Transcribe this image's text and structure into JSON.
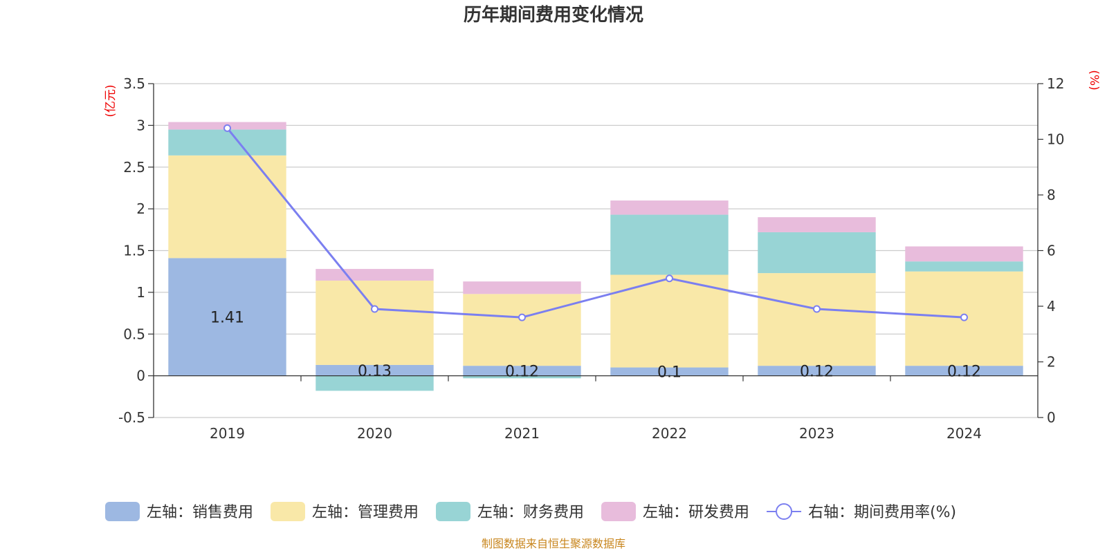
{
  "title": "历年期间费用变化情况",
  "source": "制图数据来自恒生聚源数据库",
  "chart_data": {
    "type": "bar",
    "stacked": true,
    "categories": [
      "2019",
      "2020",
      "2021",
      "2022",
      "2023",
      "2024"
    ],
    "left_axis": {
      "unit": "(亿元)",
      "min": -0.5,
      "max": 3.5,
      "ticks": [
        -0.5,
        0,
        0.5,
        1,
        1.5,
        2,
        2.5,
        3,
        3.5
      ]
    },
    "right_axis": {
      "unit": "(%)",
      "min": 0,
      "max": 12,
      "ticks": [
        0,
        2,
        4,
        6,
        8,
        10,
        12
      ]
    },
    "grid": true,
    "legend_position": "bottom",
    "series": [
      {
        "name": "左轴：销售费用",
        "type": "bar",
        "axis": "left",
        "color": "#9db8e2",
        "values": [
          1.41,
          0.13,
          0.12,
          0.1,
          0.12,
          0.12
        ],
        "data_labels": [
          "1.41",
          "0.13",
          "0.12",
          "0.1",
          "0.12",
          "0.12"
        ]
      },
      {
        "name": "左轴：管理费用",
        "type": "bar",
        "axis": "left",
        "color": "#f9e8a8",
        "values": [
          1.23,
          1.01,
          0.86,
          1.11,
          1.11,
          1.13
        ]
      },
      {
        "name": "左轴：财务费用",
        "type": "bar",
        "axis": "left",
        "color": "#98d4d5",
        "values": [
          0.31,
          -0.18,
          -0.03,
          0.72,
          0.49,
          0.12
        ]
      },
      {
        "name": "左轴：研发费用",
        "type": "bar",
        "axis": "left",
        "color": "#e8bcdc",
        "values": [
          0.09,
          0.14,
          0.15,
          0.17,
          0.18,
          0.18
        ]
      },
      {
        "name": "右轴：期间费用率(%)",
        "type": "line",
        "axis": "right",
        "color": "#7b7ff0",
        "values": [
          10.4,
          3.9,
          3.6,
          5.0,
          3.9,
          3.6
        ]
      }
    ]
  }
}
